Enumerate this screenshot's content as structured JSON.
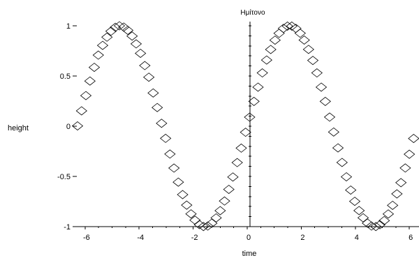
{
  "chart_data": {
    "type": "scatter",
    "title": "Ημίτονο",
    "xlabel": "time",
    "ylabel": "height",
    "xlim": [
      -6.28,
      6.28
    ],
    "ylim": [
      -1,
      1
    ],
    "grid": false,
    "marker": "diamond",
    "x_ticks": [
      -6,
      -4,
      -2,
      0,
      2,
      4,
      6
    ],
    "y_ticks": [
      -1,
      -0.5,
      0,
      0.5,
      1
    ],
    "x_tick_labels": [
      "-6",
      "-4",
      "-2",
      "0",
      "2",
      "4",
      "6"
    ],
    "y_tick_labels": [
      "-1",
      "-0.5",
      "0",
      "0.5",
      "1"
    ],
    "series": [
      {
        "x": [
          -6.28,
          -6.13,
          -5.97,
          -5.82,
          -5.66,
          -5.51,
          -5.35,
          -5.19,
          -5.04,
          -4.88,
          -4.73,
          -4.57,
          -4.42,
          -4.26,
          -4.11,
          -3.95,
          -3.79,
          -3.64,
          -3.48,
          -3.33,
          -3.17,
          -3.02,
          -2.86,
          -2.71,
          -2.55,
          -2.39,
          -2.24,
          -2.08,
          -1.93,
          -1.77,
          -1.62,
          -1.46,
          -1.31,
          -1.15,
          -1.0,
          -0.84,
          -0.68,
          -0.53,
          -0.37,
          -0.22,
          -0.06,
          0.09,
          0.25,
          0.4,
          0.56,
          0.72,
          0.87,
          1.03,
          1.18,
          1.34,
          1.49,
          1.65,
          1.8,
          1.96,
          2.11,
          2.27,
          2.43,
          2.58,
          2.74,
          2.89,
          3.05,
          3.2,
          3.36,
          3.51,
          3.67,
          3.83,
          3.98,
          4.14,
          4.29,
          4.45,
          4.6,
          4.76,
          4.91,
          5.07,
          5.22,
          5.38,
          5.54,
          5.69,
          5.85,
          6.0,
          6.16
        ],
        "y": [
          0.003,
          0.153,
          0.305,
          0.45,
          0.586,
          0.708,
          0.805,
          0.887,
          0.946,
          0.985,
          1.0,
          0.987,
          0.955,
          0.898,
          0.82,
          0.726,
          0.604,
          0.488,
          0.331,
          0.186,
          0.029,
          -0.121,
          -0.277,
          -0.417,
          -0.557,
          -0.681,
          -0.786,
          -0.873,
          -0.936,
          -0.98,
          -0.999,
          -0.994,
          -0.966,
          -0.913,
          -0.841,
          -0.745,
          -0.629,
          -0.506,
          -0.362,
          -0.218,
          -0.06,
          0.09,
          0.247,
          0.389,
          0.531,
          0.659,
          0.764,
          0.857,
          0.925,
          0.974,
          0.997,
          0.997,
          0.974,
          0.926,
          0.858,
          0.765,
          0.655,
          0.531,
          0.389,
          0.247,
          0.091,
          -0.058,
          -0.216,
          -0.361,
          -0.504,
          -0.636,
          -0.748,
          -0.84,
          -0.912,
          -0.965,
          -0.994,
          -0.999,
          -0.981,
          -0.94,
          -0.874,
          -0.788,
          -0.674,
          -0.562,
          -0.416,
          -0.279,
          -0.122
        ]
      }
    ]
  }
}
